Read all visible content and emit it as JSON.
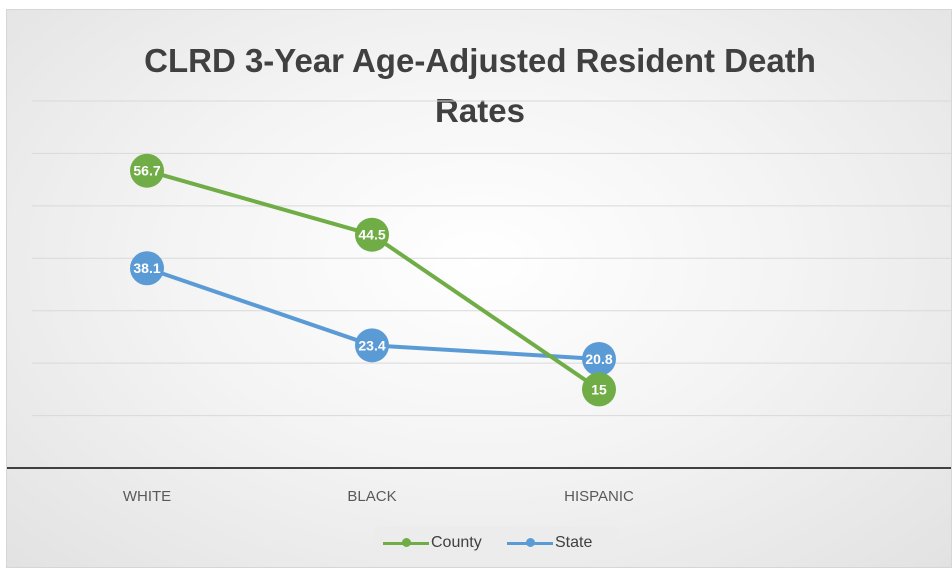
{
  "chart_data": {
    "type": "line",
    "title": "CLRD 3-Year Age-Adjusted Resident Death Rates",
    "title_lines": [
      "CLRD 3-Year Age-Adjusted Resident Death",
      "Rates"
    ],
    "categories": [
      "WHITE",
      "BLACK",
      "HISPANIC"
    ],
    "series": [
      {
        "name": "County",
        "values": [
          56.7,
          44.5,
          15
        ],
        "labels": [
          "56.7",
          "44.5",
          "15"
        ],
        "color": "#70ad47"
      },
      {
        "name": "State",
        "values": [
          38.1,
          23.4,
          20.8
        ],
        "labels": [
          "38.1",
          "23.4",
          "20.8"
        ],
        "color": "#5b9bd5"
      }
    ],
    "ylim": [
      0,
      70
    ],
    "xlabel": "",
    "ylabel": "",
    "grid": true,
    "y_tick_labels_shown": false,
    "legend_position": "bottom"
  },
  "colors": {
    "gridline": "#d9d9d9",
    "axis": "#404040",
    "label_text": "#ffffff",
    "tick_text": "#595959"
  }
}
